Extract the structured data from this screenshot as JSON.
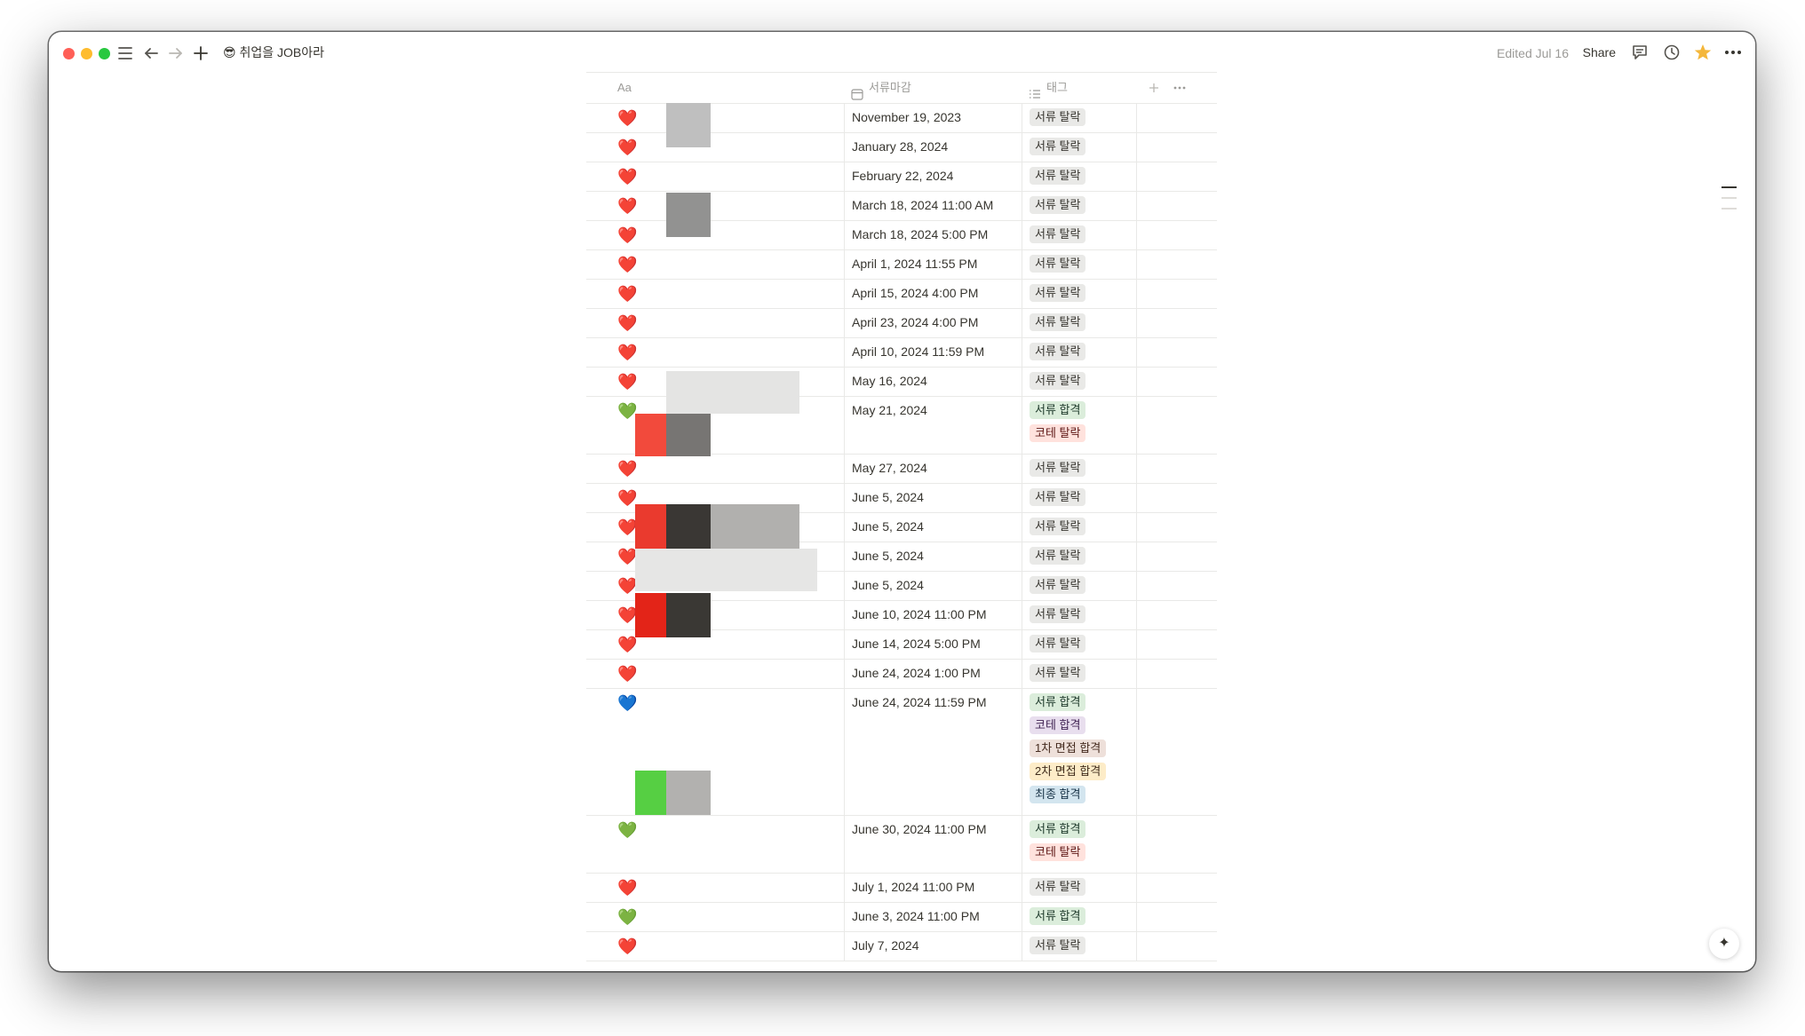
{
  "titlebar": {
    "page_emoji": "😎",
    "page_title": "취업을 JOB아라",
    "edited": "Edited Jul 16",
    "share": "Share"
  },
  "icons": {
    "menu": "menu-icon",
    "back": "arrow-left-icon",
    "forward": "arrow-right-icon",
    "new": "plus-icon",
    "comments": "comment-icon",
    "updates": "clock-icon",
    "favorite": "star-icon",
    "more": "more-icon",
    "ai": "sparkle-icon"
  },
  "table": {
    "columns": {
      "name": "Aa",
      "deadline": "서류마감",
      "tags": "태그"
    },
    "rows": [
      {
        "status": "❤️",
        "date": "November 19, 2023",
        "tags": [
          {
            "label": "서류 탈락",
            "color": "gray"
          }
        ]
      },
      {
        "status": "❤️",
        "date": "January 28, 2024",
        "tags": [
          {
            "label": "서류 탈락",
            "color": "gray"
          }
        ]
      },
      {
        "status": "❤️",
        "date": "February 22, 2024",
        "tags": [
          {
            "label": "서류 탈락",
            "color": "gray"
          }
        ]
      },
      {
        "status": "❤️",
        "date": "March 18, 2024 11:00 AM",
        "tags": [
          {
            "label": "서류 탈락",
            "color": "gray"
          }
        ]
      },
      {
        "status": "❤️",
        "date": "March 18, 2024 5:00 PM",
        "tags": [
          {
            "label": "서류 탈락",
            "color": "gray"
          }
        ]
      },
      {
        "status": "❤️",
        "date": "April 1, 2024 11:55 PM",
        "tags": [
          {
            "label": "서류 탈락",
            "color": "gray"
          }
        ]
      },
      {
        "status": "❤️",
        "date": "April 15, 2024 4:00 PM",
        "tags": [
          {
            "label": "서류 탈락",
            "color": "gray"
          }
        ]
      },
      {
        "status": "❤️",
        "date": "April 23, 2024 4:00 PM",
        "tags": [
          {
            "label": "서류 탈락",
            "color": "gray"
          }
        ]
      },
      {
        "status": "❤️",
        "date": "April 10, 2024 11:59 PM",
        "tags": [
          {
            "label": "서류 탈락",
            "color": "gray"
          }
        ]
      },
      {
        "status": "❤️",
        "date": "May 16, 2024",
        "tags": [
          {
            "label": "서류 탈락",
            "color": "gray"
          }
        ]
      },
      {
        "status": "💚",
        "date": "May 21, 2024",
        "tags": [
          {
            "label": "서류 합격",
            "color": "green"
          },
          {
            "label": "코테 탈락",
            "color": "red"
          }
        ]
      },
      {
        "status": "❤️",
        "date": "May 27, 2024",
        "tags": [
          {
            "label": "서류 탈락",
            "color": "gray"
          }
        ]
      },
      {
        "status": "❤️",
        "date": "June 5, 2024",
        "tags": [
          {
            "label": "서류 탈락",
            "color": "gray"
          }
        ]
      },
      {
        "status": "❤️",
        "date": "June 5, 2024",
        "tags": [
          {
            "label": "서류 탈락",
            "color": "gray"
          }
        ]
      },
      {
        "status": "❤️",
        "date": "June 5, 2024",
        "tags": [
          {
            "label": "서류 탈락",
            "color": "gray"
          }
        ]
      },
      {
        "status": "❤️",
        "date": "June 5, 2024",
        "tags": [
          {
            "label": "서류 탈락",
            "color": "gray"
          }
        ]
      },
      {
        "status": "❤️",
        "date": "June 10, 2024 11:00 PM",
        "tags": [
          {
            "label": "서류 탈락",
            "color": "gray"
          }
        ]
      },
      {
        "status": "❤️",
        "date": "June 14, 2024 5:00 PM",
        "tags": [
          {
            "label": "서류 탈락",
            "color": "gray"
          }
        ]
      },
      {
        "status": "❤️",
        "date": "June 24, 2024 1:00 PM",
        "tags": [
          {
            "label": "서류 탈락",
            "color": "gray"
          }
        ]
      },
      {
        "status": "💙",
        "date": "June 24, 2024 11:59 PM",
        "tags": [
          {
            "label": "서류 합격",
            "color": "green"
          },
          {
            "label": "코테 합격",
            "color": "purple"
          },
          {
            "label": "1차 면접 합격",
            "color": "brown"
          },
          {
            "label": "2차 면접 합격",
            "color": "yellow"
          },
          {
            "label": "최종 합격",
            "color": "blue"
          }
        ]
      },
      {
        "status": "💚",
        "date": "June 30, 2024 11:00 PM",
        "tags": [
          {
            "label": "서류 합격",
            "color": "green"
          },
          {
            "label": "코테 탈락",
            "color": "red"
          }
        ]
      },
      {
        "status": "❤️",
        "date": "July 1, 2024 11:00 PM",
        "tags": [
          {
            "label": "서류 탈락",
            "color": "gray"
          }
        ]
      },
      {
        "status": "💚",
        "date": "June 3, 2024 11:00 PM",
        "tags": [
          {
            "label": "서류 합격",
            "color": "green"
          }
        ]
      },
      {
        "status": "❤️",
        "date": "July 7, 2024",
        "tags": [
          {
            "label": "서류 탈락",
            "color": "gray"
          }
        ]
      }
    ]
  }
}
